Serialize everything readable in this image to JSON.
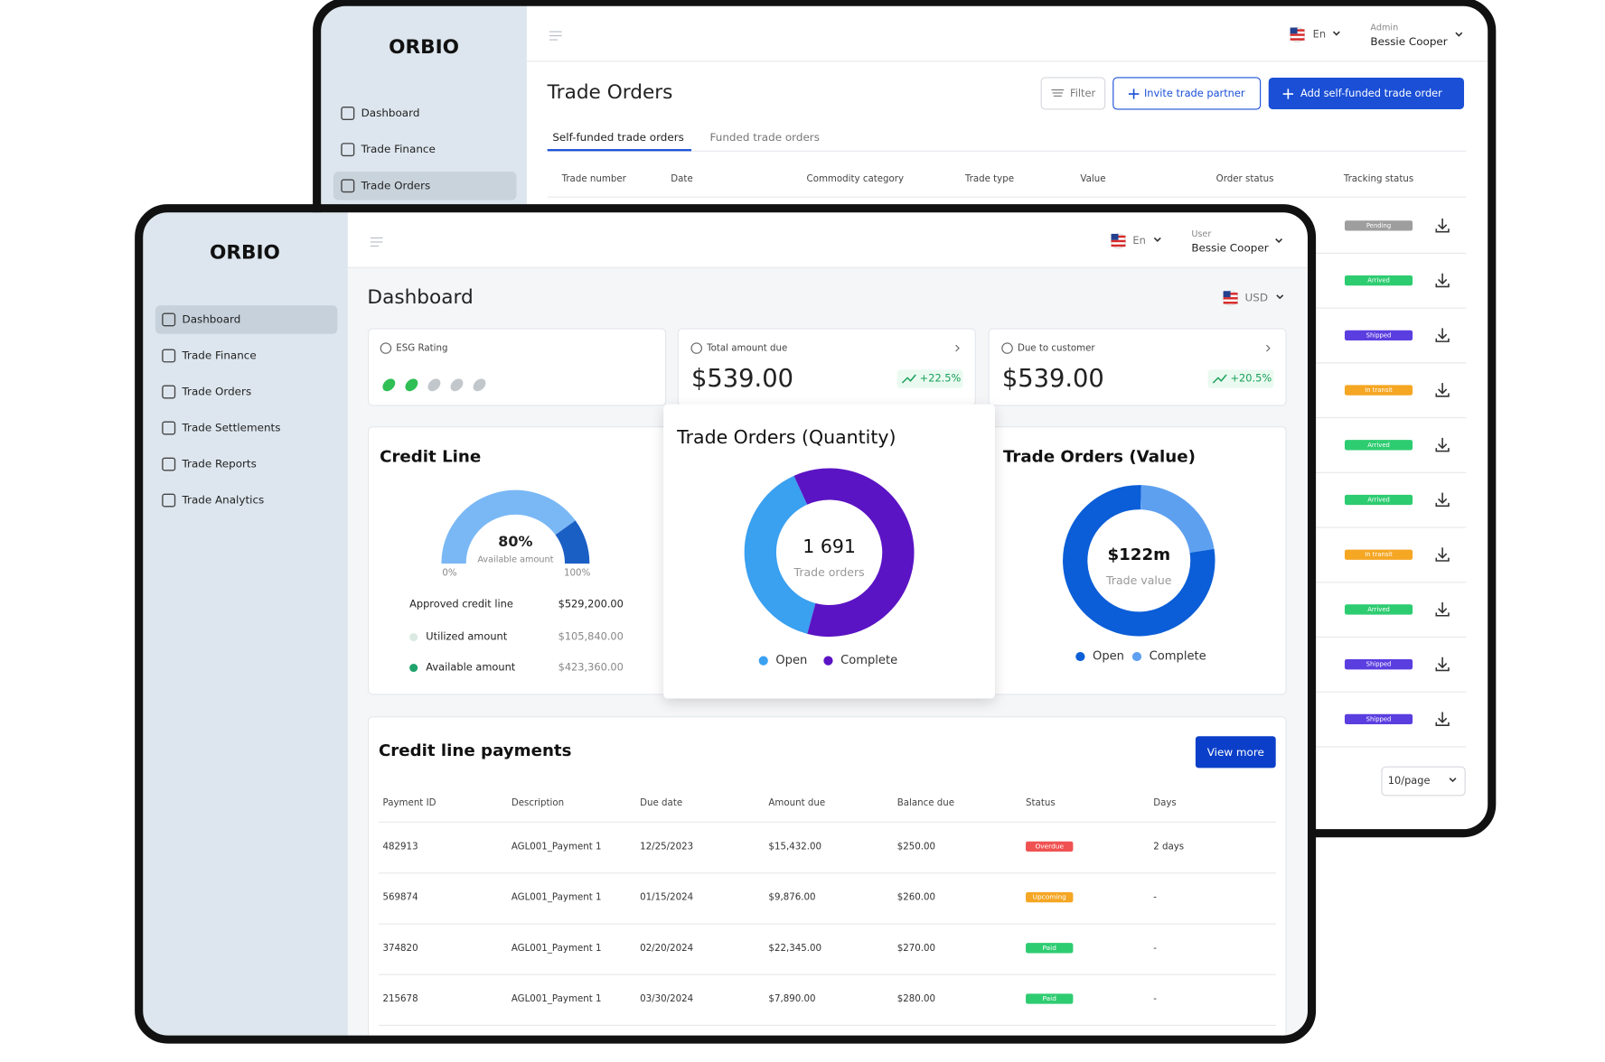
{
  "back_window": {
    "logo": "ORBIO",
    "nav": [
      "Dashboard",
      "Trade Finance",
      "Trade Orders"
    ],
    "lang": "En",
    "role": "Admin",
    "user": "Bessie Cooper",
    "title": "Trade Orders",
    "buttons": [
      "Filter",
      "Invite trade partner",
      "Add self-funded trade order"
    ],
    "tabs": [
      "Self-funded trade orders",
      "Funded trade orders"
    ],
    "columns": [
      "Trade number",
      "Date",
      "Commodity category",
      "Trade type",
      "Value",
      "Order status",
      "Tracking status"
    ],
    "tracking_status": [
      {
        "label": "Pending",
        "color": "#9e9e9e"
      },
      {
        "label": "Arrived",
        "color": "#2ecc71"
      },
      {
        "label": "Shipped",
        "color": "#5b3ee0"
      },
      {
        "label": "In transit",
        "color": "#f5a623"
      },
      {
        "label": "Arrived",
        "color": "#2ecc71"
      },
      {
        "label": "Arrived",
        "color": "#2ecc71"
      },
      {
        "label": "In transit",
        "color": "#f5a623"
      },
      {
        "label": "Arrived",
        "color": "#2ecc71"
      },
      {
        "label": "Shipped",
        "color": "#5b3ee0"
      },
      {
        "label": "Shipped",
        "color": "#5b3ee0"
      }
    ],
    "page_size": "10/page"
  },
  "front_window": {
    "logo": "ORBIO",
    "nav": [
      "Dashboard",
      "Trade Finance",
      "Trade Orders",
      "Trade Settlements",
      "Trade Reports",
      "Trade Analytics"
    ],
    "lang": "En",
    "role": "User",
    "user": "Bessie Cooper",
    "title": "Dashboard",
    "currency": "USD",
    "esg": {
      "label": "ESG Rating",
      "rating": 2,
      "max": 5
    },
    "cards": [
      {
        "label": "Total amount due",
        "value": "$539.00",
        "change": "+22.5%"
      },
      {
        "label": "Due to customer",
        "value": "$539.00",
        "change": "+20.5%"
      }
    ],
    "credit_line": {
      "title": "Credit Line",
      "gauge": {
        "value": 80,
        "value_label": "80%",
        "caption": "Available amount",
        "ticks": [
          {
            "value": 0,
            "label": "0%"
          },
          {
            "value": 100,
            "label": "100%"
          }
        ]
      },
      "rows": [
        {
          "label": "Approved credit line",
          "value": "$529,200.00"
        },
        {
          "label": "Utilized amount",
          "value": "$105,840.00",
          "color": "#dbe9e3"
        },
        {
          "label": "Available amount",
          "value": "$423,360.00",
          "color": "#1fa36b"
        }
      ]
    },
    "orders_quantity": {
      "type": "donut",
      "title": "Trade Orders (Quantity)",
      "center_value": "1 691",
      "center_caption": "Trade orders",
      "series": [
        {
          "name": "Open",
          "color": "#3aa0f0",
          "value": 39
        },
        {
          "name": "Complete",
          "color": "#5b14c4",
          "value": 61
        }
      ]
    },
    "orders_value": {
      "type": "donut",
      "title": "Trade Orders (Value)",
      "center_value": "$122m",
      "center_caption": "Trade value",
      "series": [
        {
          "name": "Open",
          "color": "#0b5ed7",
          "value": 78
        },
        {
          "name": "Complete",
          "color": "#5ea0f0",
          "value": 22
        }
      ]
    },
    "payments": {
      "title": "Credit line payments",
      "button": "View more",
      "columns": [
        "Payment ID",
        "Description",
        "Due date",
        "Amount due",
        "Balance due",
        "Status",
        "Days"
      ],
      "rows": [
        [
          "482913",
          "AGL001_Payment 1",
          "12/25/2023",
          "$15,432.00",
          "$250.00",
          {
            "label": "Overdue",
            "color": "#f05252"
          },
          "2 days"
        ],
        [
          "569874",
          "AGL001_Payment 1",
          "01/15/2024",
          "$9,876.00",
          "$260.00",
          {
            "label": "Upcoming",
            "color": "#f5a623"
          },
          "-"
        ],
        [
          "374820",
          "AGL001_Payment 1",
          "02/20/2024",
          "$22,345.00",
          "$270.00",
          {
            "label": "Paid",
            "color": "#2ecc71"
          },
          "-"
        ],
        [
          "215678",
          "AGL001_Payment 1",
          "03/30/2024",
          "$7,890.00",
          "$280.00",
          {
            "label": "Paid",
            "color": "#2ecc71"
          },
          "-"
        ]
      ]
    }
  }
}
